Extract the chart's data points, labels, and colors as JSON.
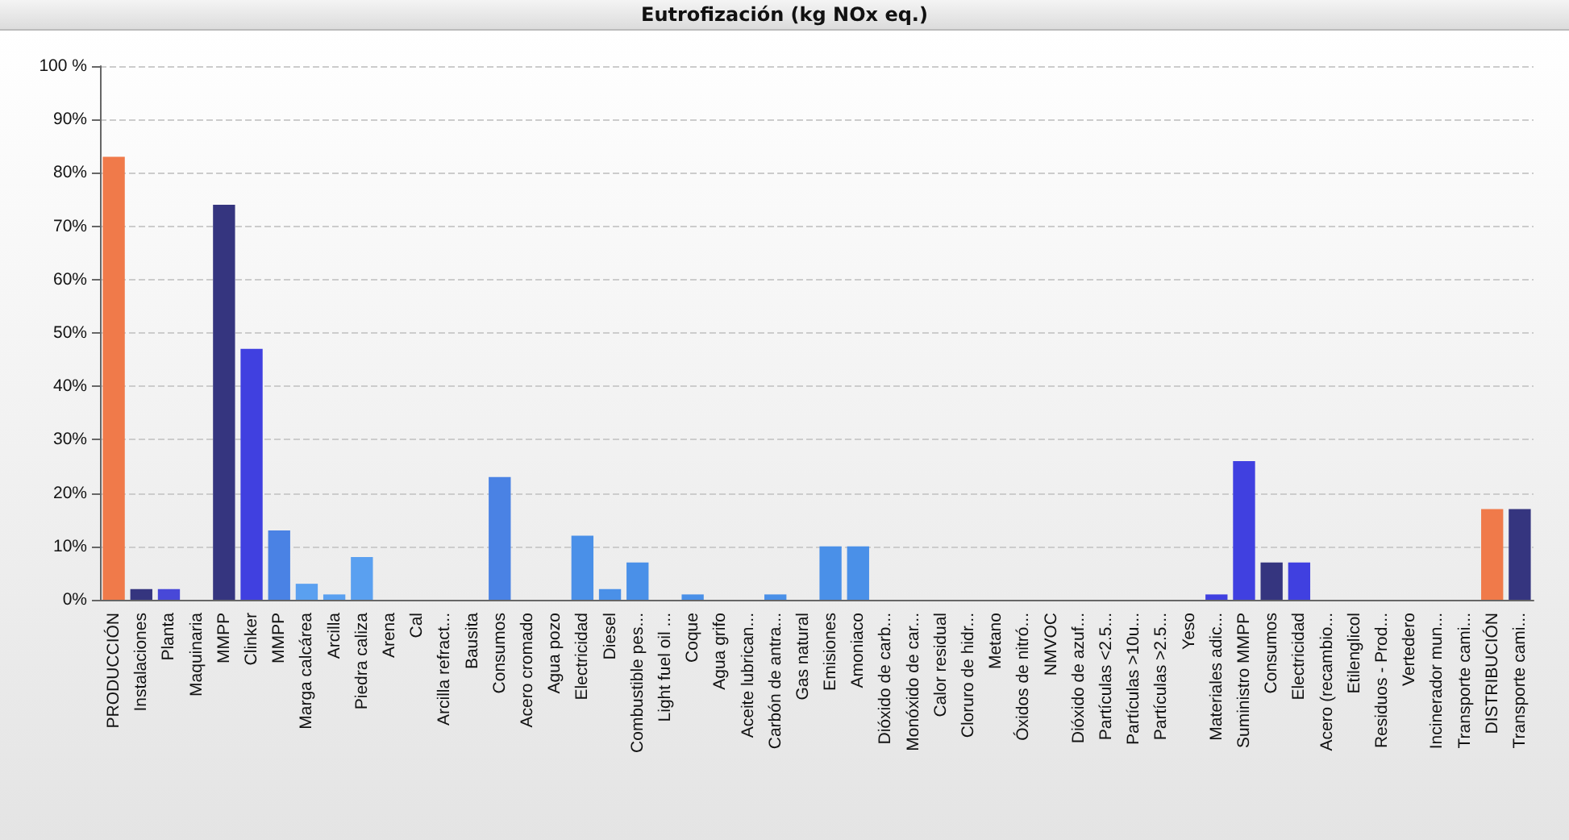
{
  "chart_data": {
    "type": "bar",
    "title": "Eutrofización (kg NOx eq.)",
    "categories": [
      "PRODUCCIÓN",
      "Instalaciones",
      "Planta",
      "Maquinaria",
      "MMPP",
      "Clinker",
      "MMPP",
      "Marga calcárea",
      "Arcilla",
      "Piedra caliza",
      "Arena",
      "Cal",
      "Arcilla refract...",
      "Bausita",
      "Consumos",
      "Acero cromado",
      "Agua pozo",
      "Electricidad",
      "Diesel",
      "Combustible pes...",
      "Light fuel oil ...",
      "Coque",
      "Agua grifo",
      "Aceite lubrican...",
      "Carbón de antra...",
      "Gas natural",
      "Emisiones",
      "Amoniaco",
      "Dióxido de carb...",
      "Monóxido de car...",
      "Calor residual",
      "Cloruro de hidr...",
      "Metano",
      "Óxidos de nitró...",
      "NMVOC",
      "Dióxido de azuf...",
      "Partículas <2.5...",
      "Partículas >10u...",
      "Partículas >2.5...",
      "Yeso",
      "Materiales adic...",
      "Suministro MMPP",
      "Consumos",
      "Electricidad",
      "Acero (recambio...",
      "Etilenglicol",
      "Residuos - Prod...",
      "Vertedero",
      "Incinerador mun...",
      "Transporte cami...",
      "DISTRIBUCIÓN",
      "Transporte cami..."
    ],
    "values": [
      83,
      2,
      2,
      0,
      74,
      47,
      13,
      3,
      1,
      8,
      0,
      0,
      0,
      0,
      23,
      0,
      0,
      12,
      2,
      7,
      0,
      1,
      0,
      0,
      1,
      0,
      10,
      10,
      0,
      0,
      0,
      0,
      0,
      0,
      0,
      0,
      0,
      0,
      0,
      0,
      1,
      26,
      7,
      7,
      0,
      0,
      0,
      0,
      0,
      0,
      17,
      17
    ],
    "colors": [
      "#f07a4a",
      "#35357f",
      "#4848d8",
      "#4848d8",
      "#35357f",
      "#4040e0",
      "#4a82e4",
      "#5aa0f0",
      "#5aa0f0",
      "#5aa0f0",
      "#5aa0f0",
      "#5aa0f0",
      "#5aa0f0",
      "#5aa0f0",
      "#4a82e4",
      "#5aa0f0",
      "#5aa0f0",
      "#4a90e8",
      "#4a90e8",
      "#4a90e8",
      "#4a90e8",
      "#4a90e8",
      "#4a90e8",
      "#4a90e8",
      "#4a90e8",
      "#4a90e8",
      "#4a90e8",
      "#4a90e8",
      "#4a90e8",
      "#4a90e8",
      "#4a90e8",
      "#4a90e8",
      "#4a90e8",
      "#4a90e8",
      "#4a90e8",
      "#4a90e8",
      "#4a90e8",
      "#4a90e8",
      "#4a90e8",
      "#4a90e8",
      "#4040e0",
      "#4040e0",
      "#35357f",
      "#4040e0",
      "#4040e0",
      "#4040e0",
      "#4040e0",
      "#4040e0",
      "#4040e0",
      "#35357f",
      "#f07a4a",
      "#35357f"
    ],
    "ylim": [
      0,
      100
    ],
    "yticks": [
      {
        "value": 0,
        "label": "0%"
      },
      {
        "value": 10,
        "label": "10%"
      },
      {
        "value": 20,
        "label": "20%"
      },
      {
        "value": 30,
        "label": "30%"
      },
      {
        "value": 40,
        "label": "40%"
      },
      {
        "value": 50,
        "label": "50%"
      },
      {
        "value": 60,
        "label": "60%"
      },
      {
        "value": 70,
        "label": "70%"
      },
      {
        "value": 80,
        "label": "80%"
      },
      {
        "value": 90,
        "label": "90%"
      },
      {
        "value": 100,
        "label": "100 %"
      }
    ],
    "grid": "y"
  }
}
